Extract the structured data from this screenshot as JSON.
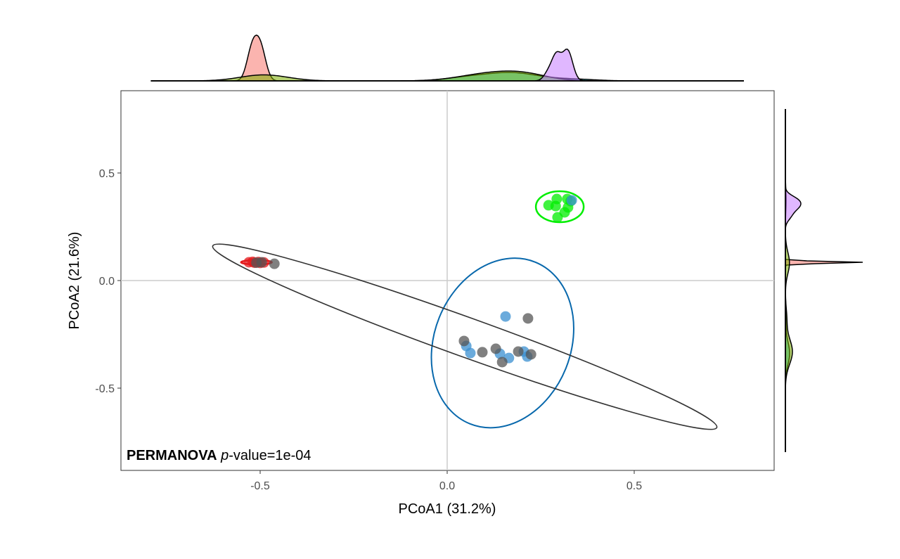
{
  "chart_data": {
    "type": "scatter",
    "xlabel": "PCoA1 (31.2%)",
    "ylabel": "PCoA2 (21.6%)",
    "xlim": [
      -0.87,
      0.88
    ],
    "ylim": [
      -0.88,
      0.88
    ],
    "xticks": [
      "-0.5",
      "0.0",
      "0.5"
    ],
    "xtick_values": [
      -0.5,
      0,
      0.5
    ],
    "yticks": [
      "-0.5",
      "0.0",
      "0.5"
    ],
    "ytick_values": [
      -0.5,
      0,
      0.5
    ],
    "grid": "zero lines only",
    "annotation": {
      "bold": "PERMANOVA",
      "italic": "p",
      "rest": "-value=1e-04"
    },
    "series": [
      {
        "color": "#e41a1c",
        "points": [
          [
            -0.53,
            0.085
          ],
          [
            -0.52,
            0.087
          ],
          [
            -0.515,
            0.083
          ],
          [
            -0.505,
            0.086
          ],
          [
            -0.5,
            0.082
          ],
          [
            -0.49,
            0.084
          ]
        ]
      },
      {
        "color": "#00ee00",
        "points": [
          [
            0.271,
            0.35
          ],
          [
            0.293,
            0.379
          ],
          [
            0.321,
            0.379
          ],
          [
            0.29,
            0.346
          ],
          [
            0.323,
            0.34
          ],
          [
            0.314,
            0.317
          ],
          [
            0.295,
            0.294
          ],
          [
            0.33,
            0.369
          ]
        ]
      },
      {
        "color": "#3a8fd0",
        "points": [
          [
            0.156,
            -0.167
          ],
          [
            0.051,
            -0.304
          ],
          [
            0.062,
            -0.337
          ],
          [
            0.141,
            -0.34
          ],
          [
            0.165,
            -0.36
          ],
          [
            0.205,
            -0.33
          ],
          [
            0.214,
            -0.353
          ],
          [
            0.333,
            0.373
          ]
        ]
      },
      {
        "color": "#555555",
        "points": [
          [
            0.216,
            -0.176
          ],
          [
            0.045,
            -0.281
          ],
          [
            0.094,
            -0.333
          ],
          [
            0.13,
            -0.317
          ],
          [
            0.147,
            -0.379
          ],
          [
            0.19,
            -0.33
          ],
          [
            0.224,
            -0.343
          ],
          [
            -0.462,
            0.078
          ],
          [
            -0.496,
            0.085
          ],
          [
            -0.51,
            0.083
          ]
        ]
      }
    ],
    "ellipses": [
      {
        "color": "#e41a1c",
        "center": [
          -0.51,
          0.085
        ]
      },
      {
        "color": "#00ee00",
        "center": [
          0.301,
          0.343
        ]
      },
      {
        "color": "#0868ac",
        "center": [
          0.148,
          -0.29
        ]
      },
      {
        "color": "#333333",
        "center": [
          0.047,
          -0.261
        ]
      }
    ],
    "density_fills": [
      "#F8766D",
      "#C77CFF",
      "#7CAE00",
      "#00BFC4"
    ]
  }
}
